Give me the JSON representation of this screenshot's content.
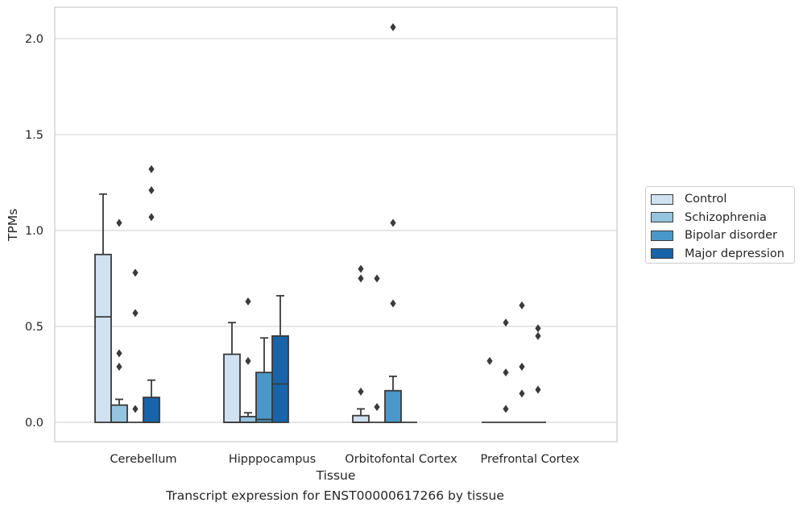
{
  "chart_data": {
    "type": "box",
    "title": "",
    "caption": "Transcript expression for ENST00000617266 by tissue",
    "xlabel": "Tissue",
    "ylabel": "TPMs",
    "ylim": [
      -0.1,
      2.17
    ],
    "yticks": [
      "0.0",
      "0.5",
      "1.0",
      "1.5",
      "2.0"
    ],
    "ytick_values": [
      0.0,
      0.5,
      1.0,
      1.5,
      2.0
    ],
    "grid": "horizontal",
    "legend_position": "right",
    "categories": [
      "Cerebellum",
      "Hipppocampus",
      "Orbitofontal Cortex",
      "Prefrontal Cortex"
    ],
    "series": [
      {
        "name": "Control",
        "color": "#d0e1f2",
        "boxes": [
          {
            "q1": 0.0,
            "median": 0.55,
            "q3": 0.875,
            "whisker_low": 0.0,
            "whisker_high": 1.19,
            "outliers": []
          },
          {
            "q1": 0.0,
            "median": 0.0,
            "q3": 0.355,
            "whisker_low": 0.0,
            "whisker_high": 0.52,
            "outliers": []
          },
          {
            "q1": 0.0,
            "median": 0.0,
            "q3": 0.035,
            "whisker_low": 0.0,
            "whisker_high": 0.07,
            "outliers": [
              0.8,
              0.75,
              0.16
            ]
          },
          {
            "q1": 0.0,
            "median": 0.0,
            "q3": 0.0,
            "whisker_low": 0.0,
            "whisker_high": 0.0,
            "outliers": [
              0.32
            ]
          }
        ]
      },
      {
        "name": "Schizophrenia",
        "color": "#94c4df",
        "boxes": [
          {
            "q1": 0.0,
            "median": 0.0,
            "q3": 0.09,
            "whisker_low": 0.0,
            "whisker_high": 0.12,
            "outliers": [
              1.04,
              0.36,
              0.29
            ]
          },
          {
            "q1": 0.0,
            "median": 0.0,
            "q3": 0.03,
            "whisker_low": 0.0,
            "whisker_high": 0.05,
            "outliers": [
              0.63,
              0.32
            ]
          },
          {
            "q1": 0.0,
            "median": 0.0,
            "q3": 0.0,
            "whisker_low": 0.0,
            "whisker_high": 0.0,
            "outliers": [
              0.75,
              0.08
            ]
          },
          {
            "q1": 0.0,
            "median": 0.0,
            "q3": 0.0,
            "whisker_low": 0.0,
            "whisker_high": 0.0,
            "outliers": [
              0.52,
              0.26,
              0.07
            ]
          }
        ]
      },
      {
        "name": "Bipolar disorder",
        "color": "#4a98c9",
        "boxes": [
          {
            "q1": 0.0,
            "median": 0.0,
            "q3": 0.0,
            "whisker_low": 0.0,
            "whisker_high": 0.0,
            "outliers": [
              0.78,
              0.57,
              0.07
            ]
          },
          {
            "q1": 0.0,
            "median": 0.015,
            "q3": 0.26,
            "whisker_low": 0.0,
            "whisker_high": 0.44,
            "outliers": []
          },
          {
            "q1": 0.0,
            "median": 0.0,
            "q3": 0.165,
            "whisker_low": 0.0,
            "whisker_high": 0.24,
            "outliers": [
              2.06,
              1.04,
              0.62
            ]
          },
          {
            "q1": 0.0,
            "median": 0.0,
            "q3": 0.0,
            "whisker_low": 0.0,
            "whisker_high": 0.0,
            "outliers": [
              0.61,
              0.29,
              0.15
            ]
          }
        ]
      },
      {
        "name": "Major depression",
        "color": "#1764ab",
        "boxes": [
          {
            "q1": 0.0,
            "median": 0.0,
            "q3": 0.13,
            "whisker_low": 0.0,
            "whisker_high": 0.22,
            "outliers": [
              1.32,
              1.21,
              1.07
            ]
          },
          {
            "q1": 0.0,
            "median": 0.2,
            "q3": 0.45,
            "whisker_low": 0.0,
            "whisker_high": 0.66,
            "outliers": []
          },
          {
            "q1": 0.0,
            "median": 0.0,
            "q3": 0.0,
            "whisker_low": 0.0,
            "whisker_high": 0.0,
            "outliers": []
          },
          {
            "q1": 0.0,
            "median": 0.0,
            "q3": 0.0,
            "whisker_low": 0.0,
            "whisker_high": 0.0,
            "outliers": [
              0.49,
              0.45,
              0.17
            ]
          }
        ]
      }
    ]
  }
}
